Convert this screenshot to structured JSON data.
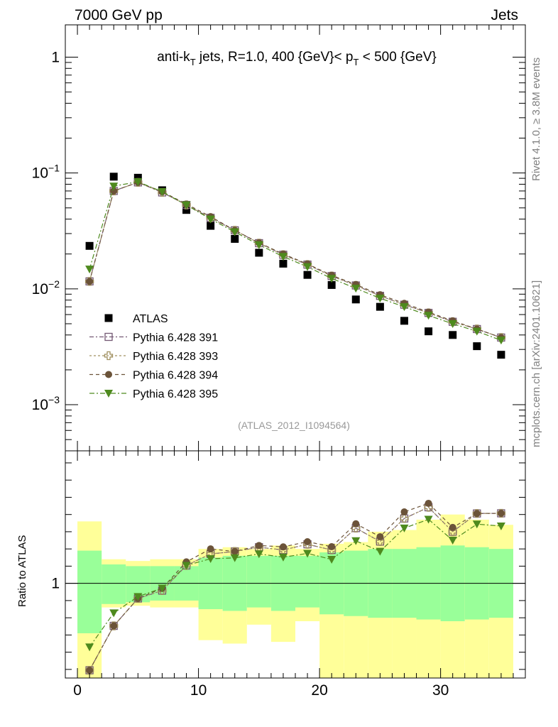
{
  "header": {
    "left": "7000 GeV pp",
    "right": "Jets"
  },
  "side_labels": {
    "rivet": "Rivet 4.1.0, ≥ 3.8M events",
    "mcplots": "mcplots.cern.ch [arXiv:2401.10621]"
  },
  "colors": {
    "atlas": "#000000",
    "p391": "#735873",
    "p393": "#a09060",
    "p394": "#6b5339",
    "p395": "#4e8a1e",
    "band_inner": "#99ff99",
    "band_outer": "#ffff99"
  },
  "chart_data": [
    {
      "type": "scatter",
      "panel": "main",
      "title": {
        "prefix": "anti-k",
        "prefix_sub": "T",
        "middle": " jets, R=1.0, 400 {GeV}< p",
        "middle_sub": "T",
        "suffix": " < 500 {GeV}"
      },
      "reference": "(ATLAS_2012_I1094564)",
      "xlabel": "",
      "ylabel": "",
      "xlim": [
        -1,
        37
      ],
      "ylim": [
        0.0004,
        1.9
      ],
      "yscale": "log",
      "y_ticks": [
        {
          "value": 1,
          "base": "1",
          "exp": ""
        },
        {
          "value": 0.1,
          "base": "10",
          "exp": "−1"
        },
        {
          "value": 0.01,
          "base": "10",
          "exp": "−2"
        },
        {
          "value": 0.001,
          "base": "10",
          "exp": "−3"
        }
      ],
      "x": [
        1,
        3,
        5,
        7,
        9,
        11,
        13,
        15,
        17,
        19,
        21,
        23,
        25,
        27,
        29,
        31,
        33,
        35
      ],
      "series": [
        {
          "name": "ATLAS",
          "marker": "square",
          "values": [
            0.0235,
            0.093,
            0.091,
            0.071,
            0.048,
            0.035,
            0.027,
            0.0205,
            0.0165,
            0.0132,
            0.0108,
            0.0081,
            0.007,
            0.0053,
            0.0043,
            0.004,
            0.0032,
            0.0027
          ]
        },
        {
          "name": "Pythia 6.428 391",
          "marker": "open-square",
          "values": [
            0.0116,
            0.07,
            0.083,
            0.068,
            0.053,
            0.041,
            0.032,
            0.0248,
            0.0197,
            0.0162,
            0.0129,
            0.0107,
            0.0087,
            0.0073,
            0.0062,
            0.0052,
            0.0045,
            0.0038
          ]
        },
        {
          "name": "Pythia 6.428 393",
          "marker": "open-cross",
          "values": [
            0.0116,
            0.07,
            0.083,
            0.068,
            0.053,
            0.041,
            0.032,
            0.0248,
            0.0197,
            0.0162,
            0.0129,
            0.0107,
            0.0087,
            0.0073,
            0.0062,
            0.0052,
            0.0045,
            0.0038
          ]
        },
        {
          "name": "Pythia 6.428 394",
          "marker": "circle",
          "values": [
            0.0116,
            0.07,
            0.083,
            0.069,
            0.054,
            0.042,
            0.032,
            0.025,
            0.02,
            0.0164,
            0.0131,
            0.0109,
            0.0089,
            0.0075,
            0.0063,
            0.0053,
            0.0045,
            0.0038
          ]
        },
        {
          "name": "Pythia 6.428 395",
          "marker": "triangle-down",
          "values": [
            0.0148,
            0.077,
            0.084,
            0.069,
            0.053,
            0.04,
            0.031,
            0.024,
            0.019,
            0.0155,
            0.0123,
            0.0101,
            0.0083,
            0.007,
            0.0059,
            0.005,
            0.0043,
            0.0036
          ]
        }
      ]
    },
    {
      "type": "line",
      "panel": "ratio",
      "ylabel": "Ratio to ATLAS",
      "xlim": [
        -1,
        37
      ],
      "ylim": [
        0.45,
        1.77
      ],
      "x_ticks": [
        0,
        10,
        20,
        30
      ],
      "y_ticks": [
        1
      ],
      "bins": [
        [
          0,
          2
        ],
        [
          2,
          4
        ],
        [
          4,
          6
        ],
        [
          6,
          8
        ],
        [
          8,
          10
        ],
        [
          10,
          12
        ],
        [
          12,
          14
        ],
        [
          14,
          16
        ],
        [
          16,
          18
        ],
        [
          18,
          20
        ],
        [
          20,
          22
        ],
        [
          22,
          24
        ],
        [
          24,
          26
        ],
        [
          26,
          28
        ],
        [
          28,
          30
        ],
        [
          30,
          32
        ],
        [
          32,
          34
        ],
        [
          34,
          36
        ]
      ],
      "band_inner": [
        [
          0.71,
          1.19
        ],
        [
          0.88,
          1.11
        ],
        [
          0.89,
          1.1
        ],
        [
          0.9,
          1.1
        ],
        [
          0.9,
          1.1
        ],
        [
          0.85,
          1.15
        ],
        [
          0.84,
          1.16
        ],
        [
          0.86,
          1.16
        ],
        [
          0.84,
          1.16
        ],
        [
          0.86,
          1.16
        ],
        [
          0.82,
          1.18
        ],
        [
          0.81,
          1.19
        ],
        [
          0.8,
          1.2
        ],
        [
          0.8,
          1.2
        ],
        [
          0.79,
          1.21
        ],
        [
          0.78,
          1.22
        ],
        [
          0.79,
          1.21
        ],
        [
          0.8,
          1.2
        ]
      ],
      "band_outer": [
        [
          0.3,
          1.36
        ],
        [
          0.86,
          1.14
        ],
        [
          0.87,
          1.13
        ],
        [
          0.86,
          1.14
        ],
        [
          0.86,
          1.14
        ],
        [
          0.67,
          1.2
        ],
        [
          0.65,
          1.21
        ],
        [
          0.76,
          1.2
        ],
        [
          0.66,
          1.22
        ],
        [
          0.78,
          1.2
        ],
        [
          0.43,
          1.23
        ],
        [
          0.45,
          1.24
        ],
        [
          0.2,
          1.3
        ],
        [
          0.24,
          1.31
        ],
        [
          0.22,
          1.37
        ],
        [
          0.19,
          1.4
        ],
        [
          0.21,
          1.37
        ],
        [
          0.32,
          1.34
        ]
      ],
      "series": [
        {
          "name": "Pythia 6.428 391",
          "values": [
            0.495,
            0.753,
            0.912,
            0.958,
            1.104,
            1.171,
            1.185,
            1.21,
            1.194,
            1.227,
            1.194,
            1.321,
            1.243,
            1.377,
            1.442,
            1.3,
            1.406,
            1.407
          ]
        },
        {
          "name": "Pythia 6.428 393",
          "values": [
            0.495,
            0.753,
            0.912,
            0.958,
            1.104,
            1.171,
            1.185,
            1.21,
            1.194,
            1.227,
            1.194,
            1.321,
            1.243,
            1.377,
            1.442,
            1.3,
            1.406,
            1.407
          ]
        },
        {
          "name": "Pythia 6.428 394",
          "values": [
            0.495,
            0.753,
            0.912,
            0.971,
            1.125,
            1.2,
            1.185,
            1.22,
            1.212,
            1.242,
            1.213,
            1.346,
            1.271,
            1.415,
            1.465,
            1.325,
            1.406,
            1.407
          ]
        },
        {
          "name": "Pythia 6.428 395",
          "values": [
            0.63,
            0.828,
            0.923,
            0.972,
            1.104,
            1.143,
            1.148,
            1.171,
            1.152,
            1.174,
            1.139,
            1.247,
            1.186,
            1.321,
            1.372,
            1.25,
            1.344,
            1.333
          ]
        }
      ]
    }
  ]
}
